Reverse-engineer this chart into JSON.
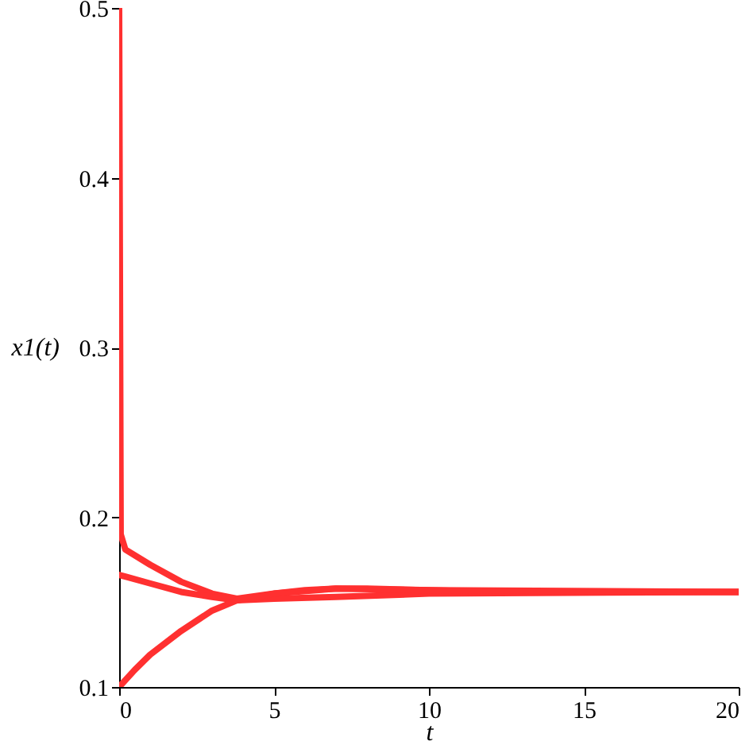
{
  "chart_data": {
    "type": "line",
    "xlabel": "t",
    "ylabel": "x1(t)",
    "xlim": [
      0,
      20
    ],
    "xticks": [
      0,
      5,
      10,
      15,
      20
    ],
    "ylim": [
      0.1,
      0.5
    ],
    "yticks": [
      0.1,
      0.2,
      0.3,
      0.4,
      0.5
    ],
    "grid": false,
    "series": [
      {
        "color": "#ff3030",
        "x": [
          0,
          0.05,
          0.2,
          1,
          2,
          3,
          3.8,
          5,
          6,
          7,
          8,
          10,
          12,
          20
        ],
        "values": [
          0.5,
          0.19,
          0.181,
          0.172,
          0.162,
          0.155,
          0.152,
          0.155,
          0.157,
          0.158,
          0.158,
          0.157,
          0.156,
          0.156
        ]
      },
      {
        "color": "#ff3030",
        "x": [
          0,
          0.2,
          1,
          2,
          3,
          3.8,
          5,
          7,
          10,
          20
        ],
        "values": [
          0.166,
          0.165,
          0.161,
          0.156,
          0.153,
          0.151,
          0.152,
          0.153,
          0.155,
          0.156
        ]
      },
      {
        "color": "#ff3030",
        "x": [
          0,
          0.5,
          1,
          2,
          3,
          3.8,
          5,
          7,
          10,
          20
        ],
        "values": [
          0.1,
          0.11,
          0.119,
          0.133,
          0.145,
          0.151,
          0.155,
          0.158,
          0.157,
          0.156
        ]
      }
    ]
  }
}
